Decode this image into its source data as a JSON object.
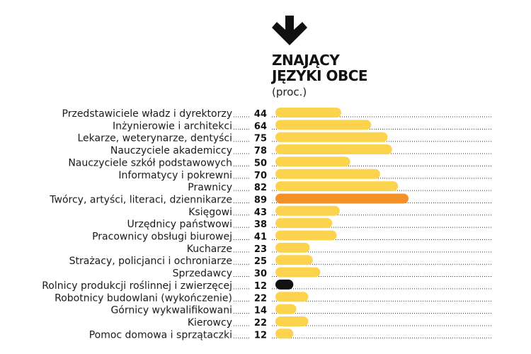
{
  "header": {
    "title_line1": "ZNAJĄCY",
    "title_line2": "JĘZYKI OBCE",
    "subtitle": "(proc.)"
  },
  "colors": {
    "bar": "#fcd34d",
    "highlight": "#f39027",
    "dark": "#111111",
    "dots": "#333333"
  },
  "chart_data": {
    "type": "bar",
    "orientation": "horizontal",
    "title": "ZNAJĄCY JĘZYKI OBCE",
    "subtitle": "(proc.)",
    "xlim": [
      0,
      100
    ],
    "categories": [
      "Przedstawiciele władz i dyrektorzy",
      "Inżynierowie i architekci",
      "Lekarze, weterynarze, dentyści",
      "Nauczyciele akademiccy",
      "Nauczyciele szkół podstawowych",
      "Informatycy i pokrewni",
      "Prawnicy",
      "Twórcy, artyści, literaci, dziennikarze",
      "Księgowi",
      "Urzędnicy państwowi",
      "Pracownicy obsługi biurowej",
      "Kucharze",
      "Strażacy, policjanci i ochroniarze",
      "Sprzedawcy",
      "Rolnicy produkcji roślinnej i zwierzęcej",
      "Robotnicy budowlani (wykończenie)",
      "Górnicy wykwalifikowani",
      "Kierowcy",
      "Pomoc domowa i sprzątaczki"
    ],
    "values": [
      44,
      64,
      75,
      78,
      50,
      70,
      82,
      89,
      43,
      38,
      41,
      23,
      25,
      30,
      12,
      22,
      14,
      22,
      12
    ],
    "highlight_max": "Twórcy, artyści, literaci, dziennikarze",
    "highlight_min": "Rolnicy produkcji roślinnej i zwierzęcej"
  }
}
